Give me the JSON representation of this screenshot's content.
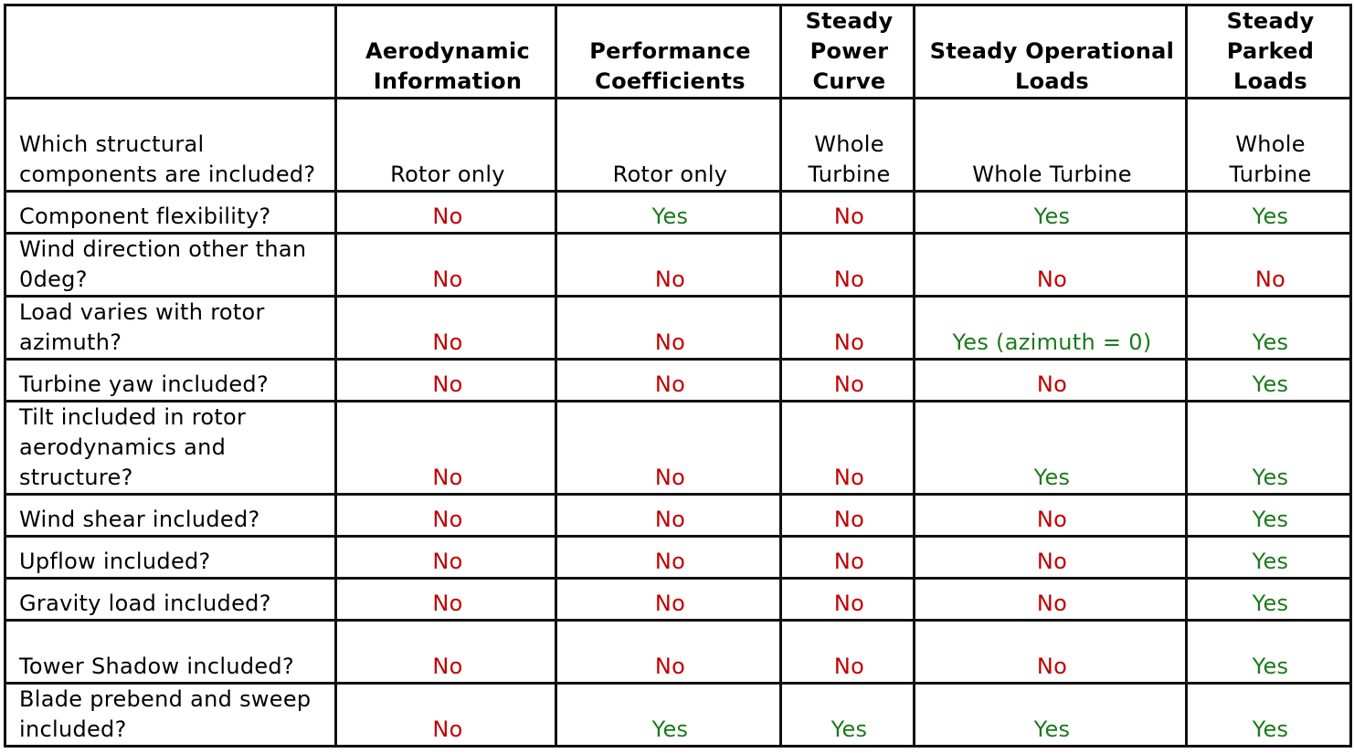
{
  "table": {
    "columns": [
      "",
      "Aerodynamic Information",
      "Performance Coefficients",
      "Steady Power Curve",
      "Steady Operational Loads",
      "Steady Parked Loads"
    ],
    "rows": [
      {
        "label": "Which structural components are included?",
        "cells": [
          "Rotor only",
          "Rotor only",
          "Whole Turbine",
          "Whole Turbine",
          "Whole Turbine"
        ],
        "colors": [
          "#000000",
          "#000000",
          "#000000",
          "#000000",
          "#000000"
        ]
      },
      {
        "label": "Component flexibility?",
        "cells": [
          "No",
          "Yes",
          "No",
          "Yes",
          "Yes"
        ],
        "colors": [
          "#c00000",
          "#1b7a1b",
          "#c00000",
          "#1b7a1b",
          "#1b7a1b"
        ]
      },
      {
        "label": "Wind direction other than 0deg?",
        "cells": [
          "No",
          "No",
          "No",
          "No",
          "No"
        ],
        "colors": [
          "#c00000",
          "#c00000",
          "#c00000",
          "#c00000",
          "#c00000"
        ]
      },
      {
        "label": "Load varies with rotor azimuth?",
        "cells": [
          "No",
          "No",
          "No",
          "Yes (azimuth = 0)",
          "Yes"
        ],
        "colors": [
          "#c00000",
          "#c00000",
          "#c00000",
          "#1b7a1b",
          "#1b7a1b"
        ]
      },
      {
        "label": "Turbine yaw included?",
        "cells": [
          "No",
          "No",
          "No",
          "No",
          "Yes"
        ],
        "colors": [
          "#c00000",
          "#c00000",
          "#c00000",
          "#c00000",
          "#1b7a1b"
        ]
      },
      {
        "label": "Tilt included in rotor aerodynamics and structure?",
        "cells": [
          "No",
          "No",
          "No",
          "Yes",
          "Yes"
        ],
        "colors": [
          "#c00000",
          "#c00000",
          "#c00000",
          "#1b7a1b",
          "#1b7a1b"
        ]
      },
      {
        "label": "Wind shear included?",
        "cells": [
          "No",
          "No",
          "No",
          "No",
          "Yes"
        ],
        "colors": [
          "#c00000",
          "#c00000",
          "#c00000",
          "#c00000",
          "#1b7a1b"
        ]
      },
      {
        "label": "Upflow included?",
        "cells": [
          "No",
          "No",
          "No",
          "No",
          "Yes"
        ],
        "colors": [
          "#c00000",
          "#c00000",
          "#c00000",
          "#c00000",
          "#1b7a1b"
        ]
      },
      {
        "label": "Gravity load included?",
        "cells": [
          "No",
          "No",
          "No",
          "No",
          "Yes"
        ],
        "colors": [
          "#c00000",
          "#c00000",
          "#c00000",
          "#c00000",
          "#1b7a1b"
        ]
      },
      {
        "label": "Tower Shadow included?",
        "cells": [
          "No",
          "No",
          "No",
          "No",
          "Yes"
        ],
        "colors": [
          "#c00000",
          "#c00000",
          "#c00000",
          "#c00000",
          "#1b7a1b"
        ]
      },
      {
        "label": "Blade prebend and sweep included?",
        "cells": [
          "No",
          "Yes",
          "Yes",
          "Yes",
          "Yes"
        ],
        "colors": [
          "#c00000",
          "#1b7a1b",
          "#1b7a1b",
          "#1b7a1b",
          "#1b7a1b"
        ]
      }
    ]
  }
}
